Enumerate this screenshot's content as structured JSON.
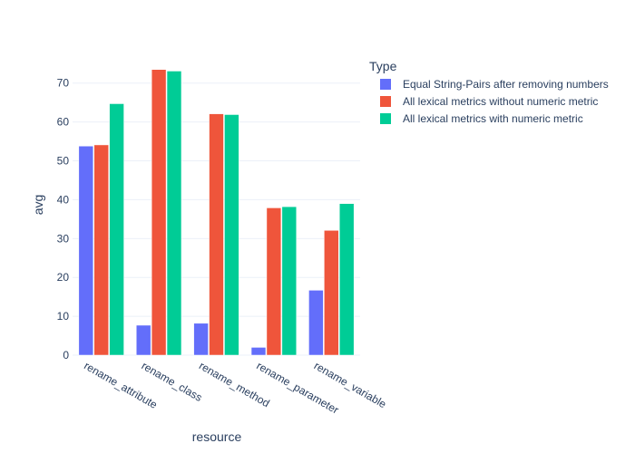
{
  "chart_data": {
    "type": "bar",
    "categories": [
      "rename_attribute",
      "rename_class",
      "rename_method",
      "rename_parameter",
      "rename_variable"
    ],
    "series": [
      {
        "name": "Equal String-Pairs after removing numbers",
        "color": "#636efa",
        "values": [
          53.8,
          7.7,
          8.2,
          2.0,
          16.7
        ]
      },
      {
        "name": "All lexical metrics without numeric metric",
        "color": "#ef553b",
        "values": [
          54.1,
          73.5,
          62.1,
          37.9,
          32.1
        ]
      },
      {
        "name": "All lexical metrics with numeric metric",
        "color": "#00cc96",
        "values": [
          64.7,
          73.1,
          61.9,
          38.2,
          39.0
        ]
      }
    ],
    "xlabel": "resource",
    "ylabel": "avg",
    "yticks": [
      0,
      10,
      20,
      30,
      40,
      50,
      60,
      70
    ],
    "ylim": [
      0,
      77.4
    ],
    "grid": true,
    "legend": {
      "title": "Type",
      "placement": "top-right"
    }
  }
}
